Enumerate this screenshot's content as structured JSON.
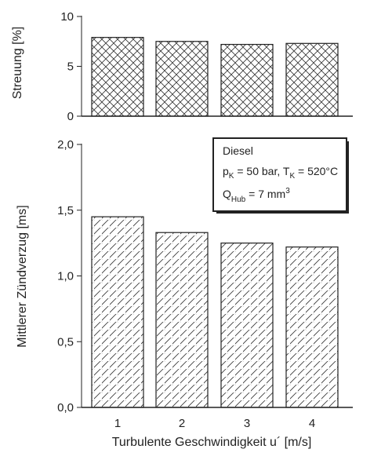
{
  "chart_data": [
    {
      "type": "bar",
      "categories": [
        "1",
        "2",
        "3",
        "4"
      ],
      "values": [
        7.9,
        7.5,
        7.2,
        7.3
      ],
      "ylabel": "Streuung  [%]",
      "xlabel": "",
      "ylim": [
        0,
        10
      ],
      "yticks": [
        "0",
        "5",
        "10"
      ],
      "pattern": "crosshatch"
    },
    {
      "type": "bar",
      "categories": [
        "1",
        "2",
        "3",
        "4"
      ],
      "values": [
        1.45,
        1.33,
        1.25,
        1.22
      ],
      "ylabel": "Mittlerer Zündverzug  [ms]",
      "xlabel": "Turbulente Geschwindigkeit u´  [m/s]",
      "ylim": [
        0,
        2.0
      ],
      "yticks": [
        "0,0",
        "0,5",
        "1,0",
        "1,5",
        "2,0"
      ],
      "pattern": "diagonal-hatch",
      "annotation": {
        "line1": "Diesel",
        "line2_pk": "p",
        "line2_pk_sub": "K",
        "line2_rest1": " = 50 bar, T",
        "line2_tk_sub": "K",
        "line2_rest2": " = 520°C",
        "line3_q": "Q",
        "line3_q_sub": "Hub",
        "line3_rest": " = 7 mm",
        "line3_sup": "3"
      }
    }
  ]
}
